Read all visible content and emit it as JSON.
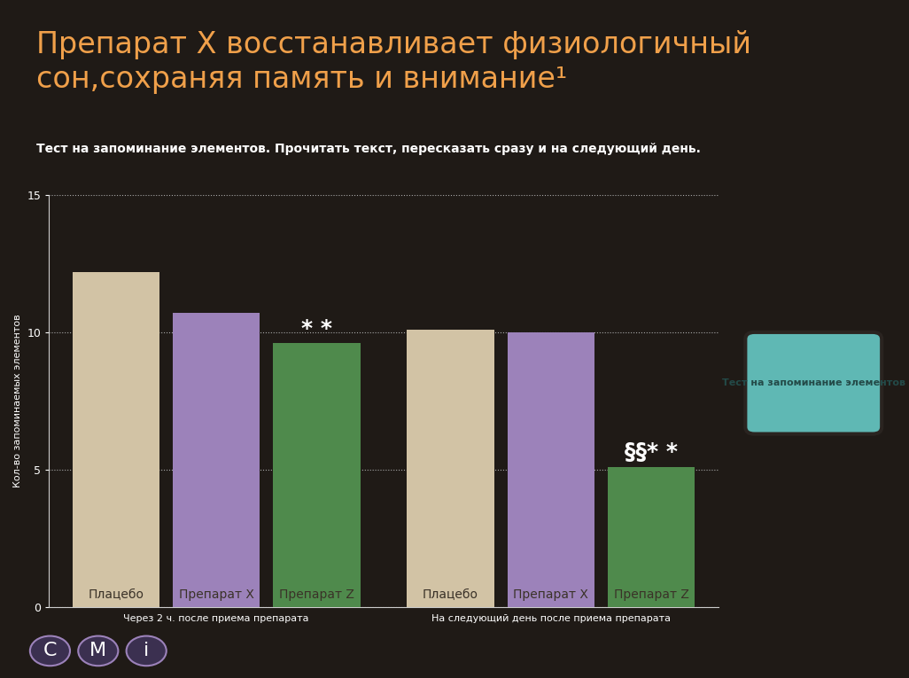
{
  "chart_data": {
    "type": "bar",
    "title": "Препарат X восстанавливает физиологичный сон,сохраняя память и внимание¹",
    "subtitle": "Тест на запоминание элементов. Прочитать текст, пересказать сразу и на следующий день.",
    "y_label": "Кол-во запоминаемых элементов",
    "categories": [
      "Через 2 ч. после приема препарата",
      "На следующий день после приема препарата"
    ],
    "series": [
      {
        "name": "Плацебо",
        "color": "#d2c3a5",
        "values": [
          12.2,
          10.1
        ]
      },
      {
        "name": "Препарат X",
        "color": "#9c82ba",
        "values": [
          10.7,
          10.0
        ]
      },
      {
        "name": "Препарат Z",
        "color": "#4f8a4c",
        "values": [
          9.6,
          5.1
        ]
      }
    ],
    "ylim": [
      0,
      15
    ],
    "yticks": [
      0,
      5,
      10,
      15
    ],
    "grid": true,
    "annotations": [
      {
        "text": "* *",
        "series": "Препарат Z",
        "category": 0
      },
      {
        "text": "§§* *",
        "series": "Препарат Z",
        "category": 1
      }
    ],
    "screen_text": "Тест на запоминание элементов",
    "buttons": [
      "C",
      "M",
      "i"
    ]
  }
}
